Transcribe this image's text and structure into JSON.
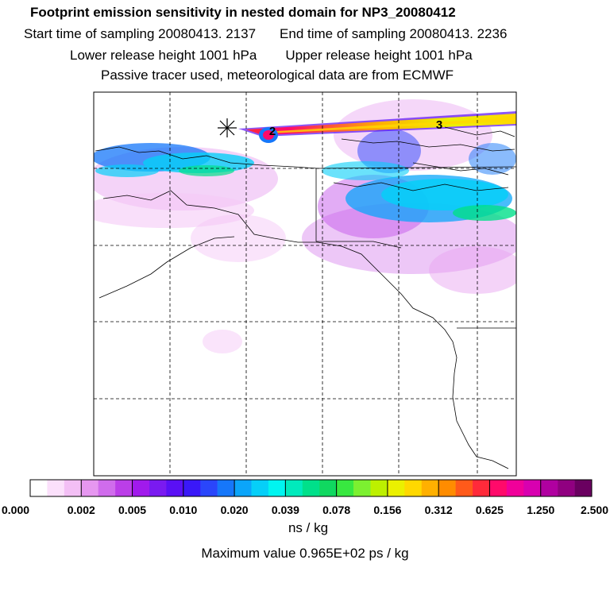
{
  "header": {
    "title": "Footprint emission sensitivity in nested domain for NP3_20080412",
    "start_time": "Start time of sampling 20080413.  2137",
    "end_time": "End time of sampling 20080413.  2236",
    "lower_height": "Lower release height 1001 hPa",
    "upper_height": "Upper release height 1001 hPa",
    "tracer_note": "Passive tracer used, meteorological data are from ECMWF"
  },
  "map": {
    "labels": [
      "2",
      "3"
    ],
    "release_marker": "asterisk-icon"
  },
  "colorbar": {
    "tick_labels": [
      "0.000",
      "0.002",
      "0.005",
      "0.010",
      "0.020",
      "0.039",
      "0.078",
      "0.156",
      "0.312",
      "0.625",
      "1.250",
      "2.500"
    ],
    "colors": [
      "#ffffff",
      "#fbe0fb",
      "#f3bff5",
      "#e697f0",
      "#d06cec",
      "#bb3ee8",
      "#a11aec",
      "#7a1af0",
      "#5a10f5",
      "#3a18f8",
      "#2a46fb",
      "#1677fa",
      "#0ba5fa",
      "#06cff8",
      "#00f5f0",
      "#00eabc",
      "#00e08a",
      "#10d860",
      "#38e840",
      "#7cf030",
      "#bdf000",
      "#ebf000",
      "#ffd800",
      "#ffb000",
      "#ff8c00",
      "#ff5a1a",
      "#ff2a3a",
      "#ff0a6a",
      "#f0009a",
      "#d800b0",
      "#b000a0",
      "#900080",
      "#6a0060"
    ],
    "units": "ns / kg",
    "maximum": "Maximum value  0.965E+02 ps / kg"
  }
}
